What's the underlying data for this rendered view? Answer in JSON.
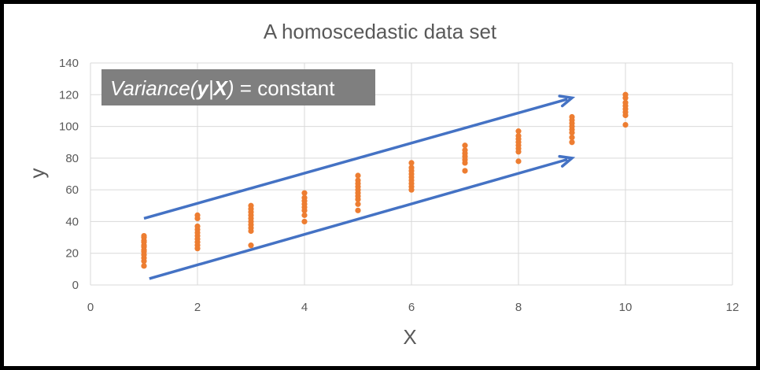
{
  "chart_data": {
    "type": "scatter",
    "title": "A homoscedastic data set",
    "xlabel": "X",
    "ylabel": "y",
    "xlim": [
      0,
      12
    ],
    "ylim": [
      0,
      140
    ],
    "xticks": [
      0,
      2,
      4,
      6,
      8,
      10,
      12
    ],
    "yticks": [
      0,
      20,
      40,
      60,
      80,
      100,
      120,
      140
    ],
    "grid": true,
    "annotation": {
      "parts": [
        {
          "text": "Variance(",
          "italic": true,
          "bold": false
        },
        {
          "text": "y",
          "italic": true,
          "bold": true
        },
        {
          "text": "|",
          "italic": true,
          "bold": false
        },
        {
          "text": "X",
          "italic": true,
          "bold": true
        },
        {
          "text": ")",
          "italic": true,
          "bold": false
        },
        {
          "text": " = constant",
          "italic": false,
          "bold": false
        }
      ]
    },
    "arrows": [
      {
        "from": [
          1,
          42
        ],
        "to": [
          9,
          118
        ]
      },
      {
        "from": [
          1.1,
          4
        ],
        "to": [
          9,
          80
        ]
      }
    ],
    "colors": {
      "points": "#ED7D31",
      "arrows": "#4472C4",
      "annotation_bg": "#7F7F7F",
      "grid": "#D9D9D9"
    },
    "series": [
      {
        "points": [
          [
            1,
            12
          ],
          [
            1,
            15
          ],
          [
            1,
            17
          ],
          [
            1,
            19
          ],
          [
            1,
            21
          ],
          [
            1,
            22
          ],
          [
            1,
            24
          ],
          [
            1,
            25
          ],
          [
            1,
            27
          ],
          [
            1,
            28
          ],
          [
            1,
            30
          ],
          [
            1,
            31
          ],
          [
            2,
            23
          ],
          [
            2,
            25
          ],
          [
            2,
            27
          ],
          [
            2,
            29
          ],
          [
            2,
            31
          ],
          [
            2,
            33
          ],
          [
            2,
            35
          ],
          [
            2,
            37
          ],
          [
            2,
            42
          ],
          [
            2,
            44
          ],
          [
            3,
            25
          ],
          [
            3,
            34
          ],
          [
            3,
            36
          ],
          [
            3,
            38
          ],
          [
            3,
            40
          ],
          [
            3,
            42
          ],
          [
            3,
            44
          ],
          [
            3,
            46
          ],
          [
            3,
            48
          ],
          [
            3,
            50
          ],
          [
            4,
            40
          ],
          [
            4,
            44
          ],
          [
            4,
            47
          ],
          [
            4,
            49
          ],
          [
            4,
            51
          ],
          [
            4,
            53
          ],
          [
            4,
            55
          ],
          [
            4,
            58
          ],
          [
            5,
            47
          ],
          [
            5,
            51
          ],
          [
            5,
            54
          ],
          [
            5,
            56
          ],
          [
            5,
            58
          ],
          [
            5,
            60
          ],
          [
            5,
            62
          ],
          [
            5,
            64
          ],
          [
            5,
            66
          ],
          [
            5,
            69
          ],
          [
            6,
            60
          ],
          [
            6,
            62
          ],
          [
            6,
            64
          ],
          [
            6,
            66
          ],
          [
            6,
            68
          ],
          [
            6,
            70
          ],
          [
            6,
            72
          ],
          [
            6,
            74
          ],
          [
            6,
            77
          ],
          [
            7,
            72
          ],
          [
            7,
            77
          ],
          [
            7,
            79
          ],
          [
            7,
            81
          ],
          [
            7,
            83
          ],
          [
            7,
            85
          ],
          [
            7,
            88
          ],
          [
            8,
            78
          ],
          [
            8,
            84
          ],
          [
            8,
            86
          ],
          [
            8,
            88
          ],
          [
            8,
            90
          ],
          [
            8,
            92
          ],
          [
            8,
            94
          ],
          [
            8,
            97
          ],
          [
            9,
            90
          ],
          [
            9,
            93
          ],
          [
            9,
            96
          ],
          [
            9,
            98
          ],
          [
            9,
            100
          ],
          [
            9,
            102
          ],
          [
            9,
            104
          ],
          [
            9,
            106
          ],
          [
            10,
            101
          ],
          [
            10,
            107
          ],
          [
            10,
            109
          ],
          [
            10,
            111
          ],
          [
            10,
            113
          ],
          [
            10,
            115
          ],
          [
            10,
            118
          ],
          [
            10,
            120
          ]
        ]
      }
    ]
  }
}
